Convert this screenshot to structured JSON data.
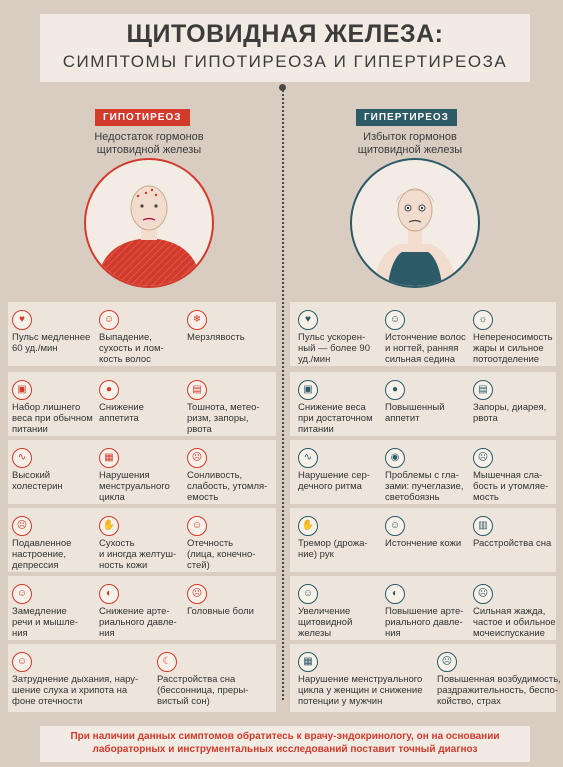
{
  "header": {
    "title_line1": "ЩИТОВИДНАЯ ЖЕЛЕЗА:",
    "title_line2": "СИМПТОМЫ ГИПОТИРЕОЗА И ГИПЕРТИРЕОЗА"
  },
  "hypo": {
    "label": "ГИПОТИРЕОЗ",
    "subtitle": "Недостаток гормонов\nщитовидной железы",
    "accent": "#d23a2c",
    "symptoms": [
      {
        "icon": "heart-pulse-icon",
        "glyph": "♥",
        "text": "Пульс медленнее\n60 уд./мин"
      },
      {
        "icon": "hair-loss-icon",
        "glyph": "☺",
        "text": "Выпадение,\nсухость и лом-\nкость волос"
      },
      {
        "icon": "thermometer-icon",
        "glyph": "❄",
        "text": "Мерзлявость"
      },
      {
        "icon": "weight-scale-icon",
        "glyph": "▣",
        "text": "Набор лишнего\nвеса при обычном\nпитании"
      },
      {
        "icon": "apple-icon",
        "glyph": "●",
        "text": "Снижение\nаппетита"
      },
      {
        "icon": "stomach-icon",
        "glyph": "▤",
        "text": "Тошнота, метео-\nризм, запоры,\nрвота"
      },
      {
        "icon": "cholesterol-icon",
        "glyph": "∿",
        "text": "Высокий\nхолестерин"
      },
      {
        "icon": "calendar-icon",
        "glyph": "▦",
        "text": "Нарушения\nменструального\nцикла"
      },
      {
        "icon": "sleepy-face-icon",
        "glyph": "☹",
        "text": "Сонливость,\nслабость, утомля-\nемость"
      },
      {
        "icon": "sad-face-icon",
        "glyph": "☹",
        "text": "Подавленное\nнастроение,\nдепрессия"
      },
      {
        "icon": "dry-skin-icon",
        "glyph": "✋",
        "text": "Сухость\nи иногда желтуш-\nность кожи"
      },
      {
        "icon": "swollen-face-icon",
        "glyph": "☺",
        "text": "Отечность\n(лица, конечно-\nстей)"
      },
      {
        "icon": "slow-speech-icon",
        "glyph": "☺",
        "text": "Замедление\nречи и мышле-\nния"
      },
      {
        "icon": "blood-pressure-icon",
        "glyph": "◐",
        "text": "Снижение арте-\nриального давле-\nния"
      },
      {
        "icon": "headache-icon",
        "glyph": "☹",
        "text": "Головные боли"
      },
      {
        "icon": "breathing-icon",
        "glyph": "☺",
        "text": "Затруднение дыхания, нару-\nшение слуха и хрипота на\nфоне отечности"
      },
      {
        "icon": "sleep-disorder-icon",
        "glyph": "☾",
        "text": "Расстройства сна\n(бессонница, преры-\nвистый сон)"
      }
    ]
  },
  "hyper": {
    "label": "ГИПЕРТИРЕОЗ",
    "subtitle": "Избыток гормонов\nщитовидной железы",
    "accent": "#2c5a66",
    "symptoms": [
      {
        "icon": "heart-pulse-icon",
        "glyph": "♥",
        "text": "Пульс ускорен-\nный — более 90\nуд./мин"
      },
      {
        "icon": "hair-gray-icon",
        "glyph": "☺",
        "text": "Истончение волос\nи ногтей, ранняя\nсильная седина"
      },
      {
        "icon": "heat-icon",
        "glyph": "☼",
        "text": "Непереносимость\nжары и сильное\nпотоотделение"
      },
      {
        "icon": "weight-scale-icon",
        "glyph": "▣",
        "text": "Снижение веса\nпри достаточном\nпитании"
      },
      {
        "icon": "appetite-icon",
        "glyph": "●",
        "text": "Повышенный\nаппетит"
      },
      {
        "icon": "stomach-icon",
        "glyph": "▤",
        "text": "Запоры, диарея,\nрвота"
      },
      {
        "icon": "heart-rhythm-icon",
        "glyph": "∿",
        "text": "Нарушение сер-\nдечного ритма"
      },
      {
        "icon": "eye-icon",
        "glyph": "◉",
        "text": "Проблемы с гла-\nзами: пучеглазие,\nсветобоязнь"
      },
      {
        "icon": "weak-face-icon",
        "glyph": "☹",
        "text": "Мышечная сла-\nбость и утомляе-\nмость"
      },
      {
        "icon": "tremor-hand-icon",
        "glyph": "✋",
        "text": "Тремор (дрожа-\nние) рук"
      },
      {
        "icon": "thin-skin-icon",
        "glyph": "☺",
        "text": "Истончение кожи"
      },
      {
        "icon": "sleep-disorder-icon",
        "glyph": "▥",
        "text": "Расстройства сна"
      },
      {
        "icon": "thyroid-icon",
        "glyph": "☺",
        "text": "Увеличение\nщитовидной\nжелезы"
      },
      {
        "icon": "blood-pressure-icon",
        "glyph": "◐",
        "text": "Повышение арте-\nриального давле-\nния"
      },
      {
        "icon": "thirst-icon",
        "glyph": "☹",
        "text": "Сильная жажда,\nчастое и обильное\nмочеиспускание"
      },
      {
        "icon": "calendar-icon",
        "glyph": "▦",
        "text": "Нарушение менструального\nцикла у женщин и снижение\nпотенции у мужчин"
      },
      {
        "icon": "agitated-face-icon",
        "glyph": "☹",
        "text": "Повышенная возбудимость,\nраздражительность, беспо-\nкойство, страх"
      }
    ]
  },
  "footer": {
    "text": "При наличии данных симптомов обратитесь к врачу-эндокринологу, он на основании лабораторных и инструментальных исследований поставит точный диагноз"
  }
}
